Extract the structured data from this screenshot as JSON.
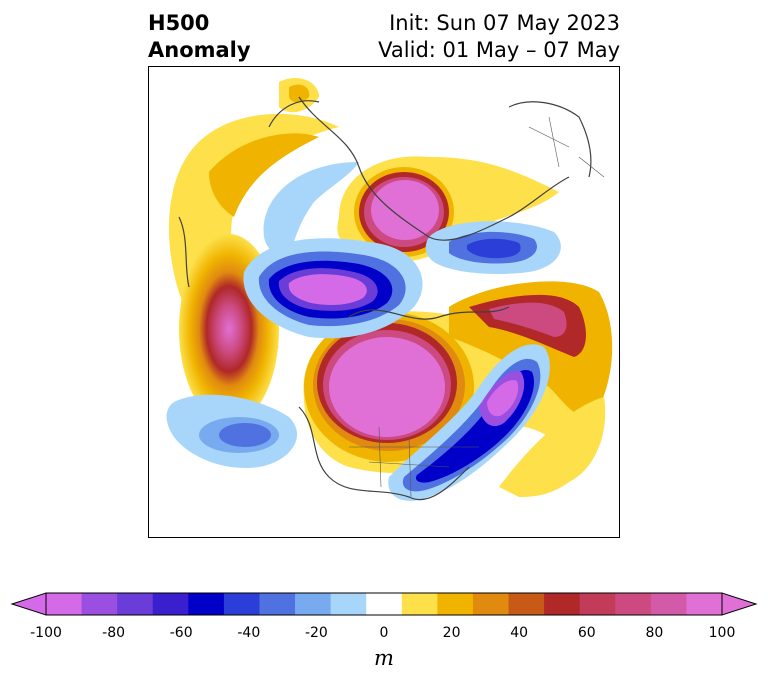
{
  "title": {
    "left_line1": "H500",
    "left_line2": "Anomaly",
    "right_line1": "Init: Sun 07 May 2023",
    "right_line2": "Valid: 01 May – 07 May"
  },
  "colorbar": {
    "unit": "m",
    "ticks": [
      "-100",
      "-80",
      "-60",
      "-40",
      "-20",
      "0",
      "20",
      "40",
      "60",
      "80",
      "100"
    ],
    "levels": [
      -100,
      -90,
      -80,
      -70,
      -60,
      -50,
      -40,
      -30,
      -20,
      -10,
      10,
      20,
      30,
      40,
      50,
      60,
      70,
      80,
      90,
      100
    ],
    "colors": [
      "#d46ae8",
      "#9a4fe0",
      "#6a3cd8",
      "#3a1fcf",
      "#0000c8",
      "#2c3ed8",
      "#4f72e0",
      "#78aaf0",
      "#a8d6fa",
      "#ffffff",
      "#fde04a",
      "#f0b400",
      "#e08a10",
      "#c85a18",
      "#b02828",
      "#c23c5a",
      "#cc4a80",
      "#d25aa8",
      "#e070d6"
    ],
    "under_color": "#d46ae8",
    "over_color": "#e070d6"
  }
}
